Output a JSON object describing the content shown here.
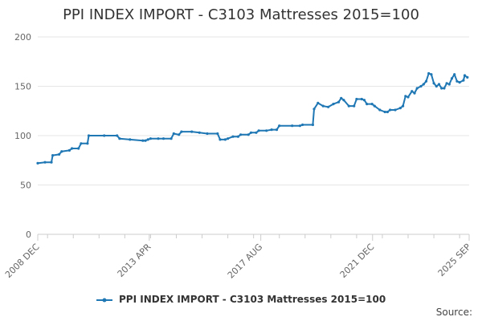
{
  "chart_data": {
    "type": "line",
    "title": "PPI INDEX IMPORT - C3103 Mattresses 2015=100",
    "xlabel": "",
    "ylabel": "",
    "ylim": [
      0,
      200
    ],
    "yticks": [
      0,
      50,
      100,
      150,
      200
    ],
    "xlim": [
      2008.92,
      2025.67
    ],
    "xticks": [
      {
        "label": "2008 DEC",
        "t": 2008.92
      },
      {
        "label": "2013 APR",
        "t": 2013.25
      },
      {
        "label": "2017 AUG",
        "t": 2017.58
      },
      {
        "label": "2021 DEC",
        "t": 2021.92
      },
      {
        "label": "2025 SEP",
        "t": 2025.67
      }
    ],
    "series": [
      {
        "name": "PPI INDEX IMPORT - C3103 Mattresses 2015=100",
        "color": "#1f77b4",
        "points": [
          [
            2008.92,
            72
          ],
          [
            2009.2,
            73
          ],
          [
            2009.45,
            73
          ],
          [
            2009.5,
            80
          ],
          [
            2009.75,
            81
          ],
          [
            2009.85,
            84
          ],
          [
            2010.15,
            85
          ],
          [
            2010.25,
            87
          ],
          [
            2010.5,
            87
          ],
          [
            2010.6,
            92
          ],
          [
            2010.85,
            92
          ],
          [
            2010.9,
            100
          ],
          [
            2011.5,
            100
          ],
          [
            2012.0,
            100
          ],
          [
            2012.1,
            97
          ],
          [
            2012.5,
            96
          ],
          [
            2013.0,
            95
          ],
          [
            2013.1,
            95
          ],
          [
            2013.2,
            96
          ],
          [
            2013.3,
            97
          ],
          [
            2013.6,
            97
          ],
          [
            2013.8,
            97
          ],
          [
            2014.1,
            97
          ],
          [
            2014.2,
            102
          ],
          [
            2014.4,
            101
          ],
          [
            2014.5,
            104
          ],
          [
            2014.9,
            104
          ],
          [
            2015.2,
            103
          ],
          [
            2015.5,
            102
          ],
          [
            2015.9,
            102
          ],
          [
            2016.0,
            96
          ],
          [
            2016.2,
            96
          ],
          [
            2016.3,
            97
          ],
          [
            2016.5,
            99
          ],
          [
            2016.7,
            99
          ],
          [
            2016.8,
            101
          ],
          [
            2017.1,
            101
          ],
          [
            2017.2,
            103
          ],
          [
            2017.4,
            103
          ],
          [
            2017.5,
            105
          ],
          [
            2017.8,
            105
          ],
          [
            2018.0,
            106
          ],
          [
            2018.2,
            106
          ],
          [
            2018.3,
            110
          ],
          [
            2018.8,
            110
          ],
          [
            2019.1,
            110
          ],
          [
            2019.2,
            111
          ],
          [
            2019.6,
            111
          ],
          [
            2019.65,
            127
          ],
          [
            2019.8,
            133
          ],
          [
            2020.0,
            130
          ],
          [
            2020.2,
            129
          ],
          [
            2020.4,
            132
          ],
          [
            2020.6,
            134
          ],
          [
            2020.7,
            138
          ],
          [
            2020.8,
            136
          ],
          [
            2021.0,
            130
          ],
          [
            2021.2,
            130
          ],
          [
            2021.3,
            137
          ],
          [
            2021.5,
            137
          ],
          [
            2021.6,
            136
          ],
          [
            2021.7,
            132
          ],
          [
            2021.9,
            132
          ],
          [
            2022.0,
            130
          ],
          [
            2022.2,
            126
          ],
          [
            2022.4,
            124
          ],
          [
            2022.5,
            124
          ],
          [
            2022.6,
            126
          ],
          [
            2022.8,
            126
          ],
          [
            2023.0,
            128
          ],
          [
            2023.1,
            130
          ],
          [
            2023.2,
            140
          ],
          [
            2023.3,
            139
          ],
          [
            2023.45,
            145
          ],
          [
            2023.55,
            143
          ],
          [
            2023.65,
            148
          ],
          [
            2023.8,
            150
          ],
          [
            2023.9,
            152
          ],
          [
            2024.0,
            155
          ],
          [
            2024.1,
            163
          ],
          [
            2024.2,
            162
          ],
          [
            2024.3,
            153
          ],
          [
            2024.4,
            150
          ],
          [
            2024.5,
            152
          ],
          [
            2024.6,
            148
          ],
          [
            2024.7,
            148
          ],
          [
            2024.8,
            153
          ],
          [
            2024.9,
            152
          ],
          [
            2025.0,
            158
          ],
          [
            2025.1,
            162
          ],
          [
            2025.2,
            155
          ],
          [
            2025.3,
            154
          ],
          [
            2025.45,
            156
          ],
          [
            2025.5,
            161
          ],
          [
            2025.6,
            159
          ]
        ]
      }
    ],
    "legend": "bottom-center",
    "grid": true,
    "source_label": "Source:"
  }
}
